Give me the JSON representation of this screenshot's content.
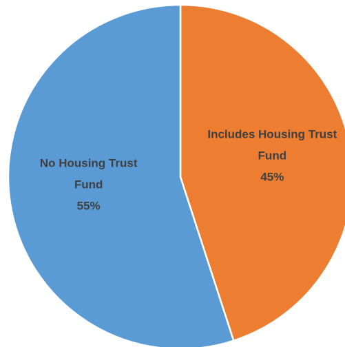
{
  "chart_data": {
    "type": "pie",
    "categories": [
      "Includes Housing Trust Fund",
      "No Housing Trust Fund"
    ],
    "values": [
      45,
      55
    ],
    "value_labels": [
      "45%",
      "55%"
    ],
    "colors": [
      "#ed7d31",
      "#5b9bd5"
    ]
  }
}
